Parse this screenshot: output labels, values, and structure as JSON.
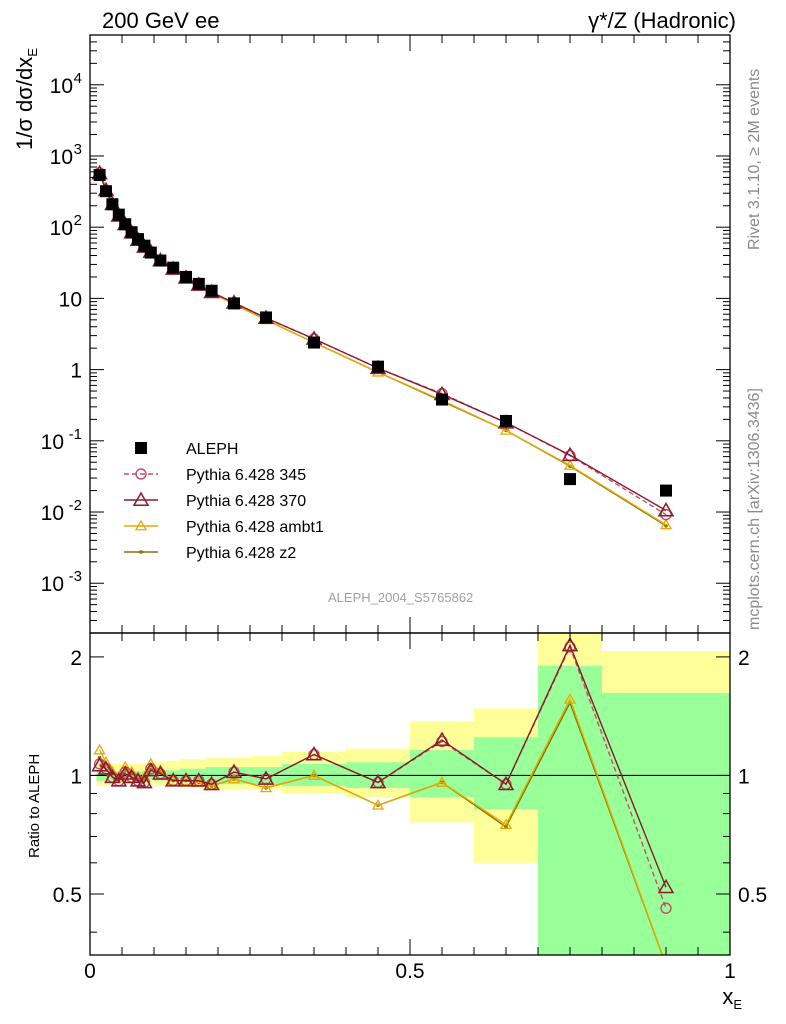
{
  "header": {
    "left_title": "200 GeV ee",
    "right_title": "γ*/Z (Hadronic)"
  },
  "side_labels": {
    "rivet": "Rivet 3.1.10, ≥ 2M events",
    "mcplots": "mcplots.cern.ch [arXiv:1306.3436]"
  },
  "analysis_id": "ALEPH_2004_S5765862",
  "chart_data": [
    {
      "type": "scatter",
      "panel": "main",
      "ylabel": "1/σ dσ/dx",
      "ylabel_sub": "E",
      "xlabel": "x",
      "xlabel_sub": "E",
      "yscale": "log",
      "ylim": [
        0.0002,
        50000
      ],
      "xlim": [
        0,
        1
      ],
      "yticks_major": [
        "10^-3",
        "10^-2",
        "10^-1",
        "1",
        "10",
        "10^2",
        "10^3",
        "10^4"
      ],
      "legend_position": "bottom-left",
      "x": [
        0.015,
        0.025,
        0.035,
        0.045,
        0.055,
        0.065,
        0.075,
        0.085,
        0.095,
        0.11,
        0.13,
        0.15,
        0.17,
        0.19,
        0.225,
        0.275,
        0.35,
        0.45,
        0.55,
        0.65,
        0.75,
        0.9
      ],
      "series": [
        {
          "name": "ALEPH",
          "color": "#000000",
          "marker": "square",
          "values": [
            540,
            320,
            210,
            150,
            110,
            85,
            68,
            55,
            44,
            34,
            27,
            20,
            16,
            12.8,
            8.5,
            5.4,
            2.4,
            1.1,
            0.38,
            0.19,
            0.029,
            0.02
          ]
        },
        {
          "name": "Pythia 6.428 345",
          "color": "#c0506a",
          "marker": "circle",
          "dashed": true,
          "values": [
            580,
            330,
            210,
            145,
            112,
            84,
            66,
            54,
            45,
            34,
            26,
            19.5,
            15.5,
            12.2,
            8.7,
            5.3,
            2.7,
            1.05,
            0.46,
            0.18,
            0.062,
            0.0092
          ]
        },
        {
          "name": "Pythia 6.428 370",
          "color": "#8b1a2e",
          "marker": "triangle",
          "values": [
            570,
            330,
            210,
            145,
            110,
            84,
            66,
            53,
            45,
            34,
            26,
            19.5,
            15.5,
            12.2,
            8.7,
            5.3,
            2.7,
            1.05,
            0.45,
            0.18,
            0.063,
            0.0105
          ]
        },
        {
          "name": "Pythia 6.428 ambt1",
          "color": "#e8a800",
          "marker": "triangle-small",
          "values": [
            620,
            345,
            215,
            148,
            115,
            87,
            67,
            54,
            47,
            35,
            26,
            19.4,
            15.4,
            12,
            8.3,
            5,
            2.4,
            0.92,
            0.37,
            0.14,
            0.045,
            0.0066
          ]
        },
        {
          "name": "Pythia 6.428 z2",
          "color": "#7a7a0a",
          "marker": "dot",
          "values": [
            600,
            340,
            212,
            147,
            113,
            86,
            66,
            53,
            46,
            34.5,
            26,
            19.4,
            15.3,
            12,
            8.3,
            5,
            2.4,
            0.92,
            0.36,
            0.14,
            0.044,
            0.0064
          ]
        }
      ]
    },
    {
      "type": "line",
      "panel": "ratio",
      "ylabel": "Ratio to ALEPH",
      "xlabel": "x",
      "xlabel_sub": "E",
      "yscale": "log",
      "ylim": [
        0.35,
        2.3
      ],
      "xlim": [
        0,
        1
      ],
      "yticks": [
        "0.5",
        "1",
        "2"
      ],
      "xticks": [
        "0",
        "0.5",
        "1"
      ],
      "bands": {
        "edges": [
          0.01,
          0.02,
          0.03,
          0.04,
          0.05,
          0.06,
          0.07,
          0.08,
          0.09,
          0.1,
          0.12,
          0.14,
          0.16,
          0.18,
          0.2,
          0.25,
          0.3,
          0.4,
          0.5,
          0.6,
          0.7,
          0.8,
          1.0
        ],
        "inner_color": "#99ff99",
        "outer_color": "#ffff99",
        "inner": [
          [
            0.97,
            1.03
          ],
          [
            0.97,
            1.03
          ],
          [
            0.97,
            1.03
          ],
          [
            0.975,
            1.025
          ],
          [
            0.975,
            1.025
          ],
          [
            0.975,
            1.025
          ],
          [
            0.975,
            1.025
          ],
          [
            0.975,
            1.025
          ],
          [
            0.975,
            1.025
          ],
          [
            0.97,
            1.03
          ],
          [
            0.97,
            1.03
          ],
          [
            0.96,
            1.04
          ],
          [
            0.96,
            1.04
          ],
          [
            0.95,
            1.05
          ],
          [
            0.95,
            1.05
          ],
          [
            0.95,
            1.05
          ],
          [
            0.94,
            1.07
          ],
          [
            0.93,
            1.08
          ],
          [
            0.88,
            1.16
          ],
          [
            0.82,
            1.25
          ],
          [
            0.35,
            1.9
          ],
          [
            0.35,
            1.62
          ]
        ],
        "outer": [
          [
            0.94,
            1.08
          ],
          [
            0.94,
            1.08
          ],
          [
            0.95,
            1.07
          ],
          [
            0.95,
            1.07
          ],
          [
            0.95,
            1.07
          ],
          [
            0.95,
            1.07
          ],
          [
            0.95,
            1.07
          ],
          [
            0.95,
            1.07
          ],
          [
            0.95,
            1.07
          ],
          [
            0.94,
            1.08
          ],
          [
            0.94,
            1.09
          ],
          [
            0.93,
            1.1
          ],
          [
            0.93,
            1.1
          ],
          [
            0.92,
            1.11
          ],
          [
            0.92,
            1.11
          ],
          [
            0.92,
            1.12
          ],
          [
            0.9,
            1.15
          ],
          [
            0.88,
            1.17
          ],
          [
            0.76,
            1.37
          ],
          [
            0.6,
            1.48
          ],
          [
            0.35,
            2.35
          ],
          [
            0.43,
            2.07
          ]
        ]
      },
      "x": [
        0.015,
        0.025,
        0.035,
        0.045,
        0.055,
        0.065,
        0.075,
        0.085,
        0.095,
        0.11,
        0.13,
        0.15,
        0.17,
        0.19,
        0.225,
        0.275,
        0.35,
        0.45,
        0.55,
        0.65,
        0.75,
        0.9
      ],
      "series": [
        {
          "name": "Pythia 6.428 345",
          "color": "#c0506a",
          "marker": "circle",
          "dashed": true,
          "values": [
            1.07,
            1.04,
            0.99,
            0.97,
            1.02,
            0.99,
            0.97,
            0.96,
            1.04,
            1.01,
            0.97,
            0.97,
            0.97,
            0.95,
            1.02,
            0.98,
            1.13,
            0.96,
            1.22,
            0.95,
            2.12,
            0.46
          ]
        },
        {
          "name": "Pythia 6.428 370",
          "color": "#8b1a2e",
          "marker": "triangle",
          "values": [
            1.06,
            1.04,
            0.99,
            0.97,
            1.01,
            0.99,
            0.97,
            0.96,
            1.03,
            1.01,
            0.97,
            0.97,
            0.97,
            0.95,
            1.02,
            0.98,
            1.13,
            0.96,
            1.23,
            0.95,
            2.14,
            0.52
          ]
        },
        {
          "name": "Pythia 6.428 ambt1",
          "color": "#e8a800",
          "marker": "triangle-small",
          "values": [
            1.16,
            1.08,
            1.02,
            0.99,
            1.05,
            1.02,
            0.99,
            0.99,
            1.07,
            1.03,
            0.97,
            0.97,
            0.96,
            0.94,
            0.98,
            0.93,
            1.0,
            0.84,
            0.96,
            0.75,
            1.56,
            0.33
          ]
        },
        {
          "name": "Pythia 6.428 z2",
          "color": "#7a7a0a",
          "marker": "dot",
          "values": [
            1.11,
            1.06,
            1.01,
            0.98,
            1.03,
            1.01,
            0.98,
            0.97,
            1.05,
            1.02,
            0.97,
            0.97,
            0.96,
            0.94,
            0.98,
            0.93,
            1.0,
            0.84,
            0.96,
            0.74,
            1.53,
            0.33
          ]
        }
      ]
    }
  ]
}
